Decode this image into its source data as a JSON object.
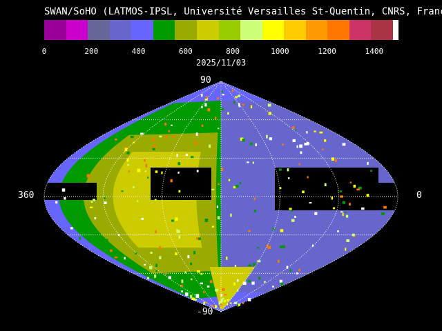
{
  "title": "SWAN/SoHO (LATMOS-IPSL, Université Versailles St-Quentin, CNRS, France)",
  "date": "2025/11/03",
  "colorbar": {
    "min": 0,
    "max": 1500,
    "colors": [
      "#990099",
      "#cc00cc",
      "#666699",
      "#6666cc",
      "#6666ff",
      "#009900",
      "#99aa00",
      "#cccc00",
      "#99cc00",
      "#ccff77",
      "#ffff00",
      "#ffcc00",
      "#ff9900",
      "#ff7700",
      "#cc3366",
      "#aa3344"
    ],
    "ticks": [
      "0",
      "200",
      "400",
      "600",
      "800",
      "1000",
      "1200",
      "1400"
    ]
  },
  "map": {
    "projection": "sinusoidal",
    "label_top": "90",
    "label_bottom": "-90",
    "label_left": "360",
    "label_right": "0",
    "background_color": "#6666ff",
    "nodata_color": "#000000"
  }
}
